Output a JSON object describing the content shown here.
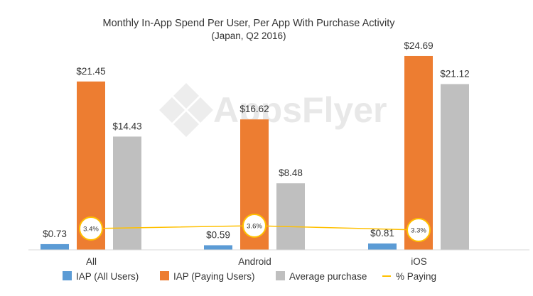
{
  "chart_data": {
    "type": "bar",
    "title": "Monthly In-App Spend Per User, Per App With Purchase Activity",
    "subtitle": "(Japan, Q2 2016)",
    "categories": [
      "All",
      "Android",
      "iOS"
    ],
    "series": [
      {
        "name": "IAP (All Users)",
        "values": [
          0.73,
          0.59,
          0.81
        ],
        "labels": [
          "$0.73",
          "$0.59",
          "$0.81"
        ],
        "color": "#5b9bd5"
      },
      {
        "name": "IAP (Paying Users)",
        "values": [
          21.45,
          16.62,
          24.69
        ],
        "labels": [
          "$21.45",
          "$16.62",
          "$24.69"
        ],
        "color": "#ed7d31"
      },
      {
        "name": "Average purchase",
        "values": [
          14.43,
          8.48,
          21.12
        ],
        "labels": [
          "$14.43",
          "$8.48",
          "$21.12"
        ],
        "color": "#bfbfbf"
      }
    ],
    "line_series": {
      "name": "% Paying",
      "values": [
        3.4,
        3.6,
        3.3
      ],
      "labels": [
        "3.4%",
        "3.6%",
        "3.3%"
      ],
      "color": "#ffc000"
    },
    "ylim": [
      0,
      25.5
    ],
    "legend_position": "bottom",
    "grid": false
  },
  "watermark": {
    "text": "AppsFlyer",
    "icon": "appsflyer-logo-icon"
  }
}
